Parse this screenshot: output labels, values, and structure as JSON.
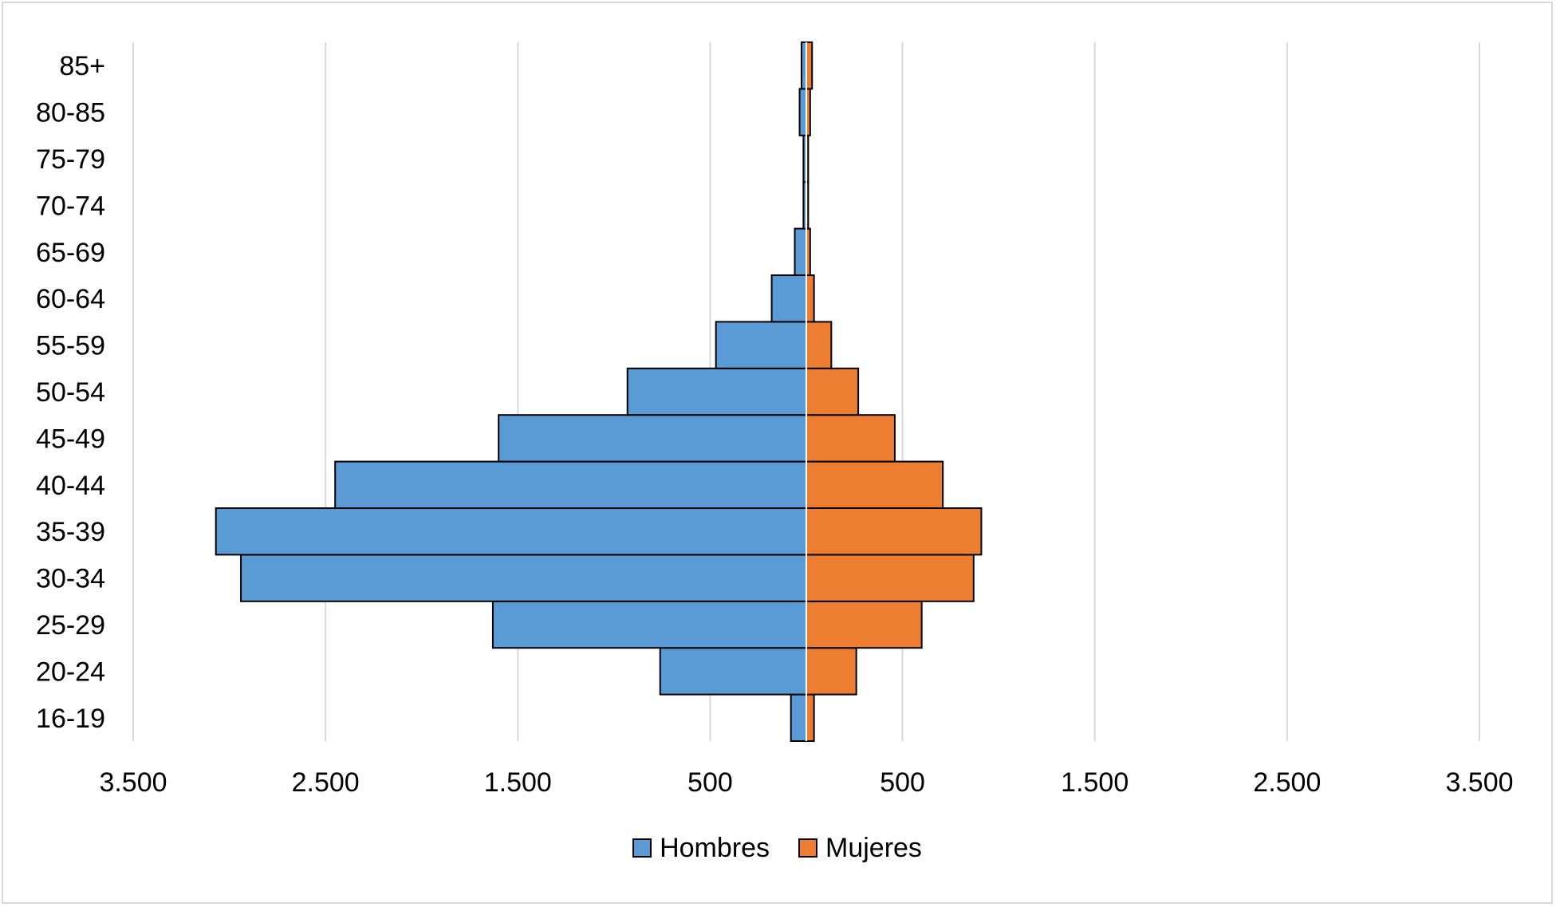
{
  "chart_data": {
    "type": "bar",
    "orientation": "horizontal",
    "subtype": "population-pyramid",
    "title": "",
    "xlabel": "",
    "ylabel": "",
    "categories": [
      "16-19",
      "20-24",
      "25-29",
      "30-34",
      "35-39",
      "40-44",
      "45-49",
      "50-54",
      "55-59",
      "60-64",
      "65-69",
      "70-74",
      "75-79",
      "80-85",
      "85+"
    ],
    "series": [
      {
        "name": "Hombres",
        "color": "#5b9bd5",
        "side": "left",
        "values": [
          80,
          760,
          1630,
          2940,
          3070,
          2450,
          1600,
          930,
          470,
          180,
          60,
          15,
          15,
          35,
          25
        ]
      },
      {
        "name": "Mujeres",
        "color": "#ed7d31",
        "side": "right",
        "values": [
          40,
          260,
          600,
          870,
          910,
          710,
          460,
          270,
          130,
          40,
          20,
          10,
          10,
          20,
          30
        ]
      }
    ],
    "xlim": [
      -3500,
      3500
    ],
    "xticks": [
      -3500,
      -2500,
      -1500,
      -500,
      500,
      1500,
      2500,
      3500
    ],
    "xtick_labels": [
      "3.500",
      "2.500",
      "1.500",
      "500",
      "500",
      "1.500",
      "2.500",
      "3.500"
    ],
    "grid": "vertical",
    "grid_color": "#d9d9d9",
    "bar_edge_color": "#000000",
    "center_line_color": "#ffffff",
    "legend": {
      "position": "bottom"
    }
  }
}
